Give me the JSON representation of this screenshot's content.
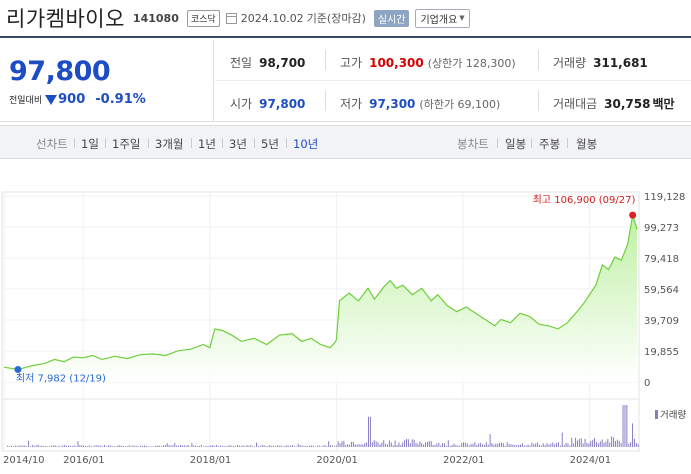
{
  "header": {
    "stock_name": "리가켐바이오",
    "stock_code": "141080",
    "market": "코스닥",
    "date": "2024.10.02",
    "basis": "기준(장마감)",
    "realtime": "실시간",
    "company_overview": "기업개요"
  },
  "price": {
    "current": "97,800",
    "change_label": "전일대비",
    "change": "900",
    "change_pct": "-0.91%",
    "direction": "down"
  },
  "stats": {
    "prev_close": {
      "label": "전일",
      "value": "98,700"
    },
    "high": {
      "label": "고가",
      "value": "100,300",
      "sub": "(상한가 128,300)"
    },
    "volume": {
      "label": "거래량",
      "value": "311,681"
    },
    "open": {
      "label": "시가",
      "value": "97,800"
    },
    "low": {
      "label": "저가",
      "value": "97,300",
      "sub": "(하한가 69,100)"
    },
    "trade_value": {
      "label": "거래대금",
      "value": "30,758",
      "unit": "백만"
    }
  },
  "tabs": {
    "line_label": "선차트",
    "line_items": [
      "1일",
      "1주일",
      "3개월",
      "1년",
      "3년",
      "5년",
      "10년"
    ],
    "active": "10년",
    "candle_label": "봉차트",
    "candle_items": [
      "일봉",
      "주봉",
      "월봉"
    ]
  },
  "colors": {
    "price_down": "#1d4dc4",
    "price_up": "#d60000",
    "line": "#6fcf3a",
    "volume": "#8a7cc4",
    "max_marker": "#e02020",
    "min_marker": "#2a6ad4"
  },
  "chart_data": {
    "type": "area",
    "x_ticks": [
      "2014/10",
      "2016/01",
      "2018/01",
      "2020/01",
      "2022/01",
      "2024/01"
    ],
    "y_ticks": [
      "119,128",
      "99,273",
      "79,418",
      "59,564",
      "39,709",
      "19,855",
      "0"
    ],
    "ylim": [
      0,
      119128
    ],
    "max_label": "최고 106,900 (09/27)",
    "min_label": "최저 7,982 (12/19)",
    "volume_legend": "거래량",
    "points": [
      [
        2014.75,
        9500
      ],
      [
        2014.97,
        7982
      ],
      [
        2015.2,
        10500
      ],
      [
        2015.4,
        12000
      ],
      [
        2015.55,
        14500
      ],
      [
        2015.7,
        13000
      ],
      [
        2015.85,
        16000
      ],
      [
        2016.0,
        15500
      ],
      [
        2016.15,
        17000
      ],
      [
        2016.3,
        14500
      ],
      [
        2016.5,
        16500
      ],
      [
        2016.7,
        15000
      ],
      [
        2016.9,
        17500
      ],
      [
        2017.1,
        18000
      ],
      [
        2017.3,
        17000
      ],
      [
        2017.5,
        20000
      ],
      [
        2017.7,
        21000
      ],
      [
        2017.9,
        24000
      ],
      [
        2018.0,
        22000
      ],
      [
        2018.08,
        34000
      ],
      [
        2018.2,
        33000
      ],
      [
        2018.35,
        30000
      ],
      [
        2018.5,
        26000
      ],
      [
        2018.7,
        28000
      ],
      [
        2018.9,
        24000
      ],
      [
        2019.1,
        30000
      ],
      [
        2019.3,
        31000
      ],
      [
        2019.45,
        26000
      ],
      [
        2019.6,
        28000
      ],
      [
        2019.75,
        24000
      ],
      [
        2019.9,
        22000
      ],
      [
        2019.97,
        25000
      ],
      [
        2020.0,
        27000
      ],
      [
        2020.05,
        52000
      ],
      [
        2020.2,
        57000
      ],
      [
        2020.35,
        52000
      ],
      [
        2020.5,
        60000
      ],
      [
        2020.6,
        53000
      ],
      [
        2020.75,
        61000
      ],
      [
        2020.85,
        65000
      ],
      [
        2020.95,
        60000
      ],
      [
        2021.05,
        62000
      ],
      [
        2021.2,
        56000
      ],
      [
        2021.35,
        60000
      ],
      [
        2021.5,
        52000
      ],
      [
        2021.6,
        56000
      ],
      [
        2021.75,
        49000
      ],
      [
        2021.9,
        45000
      ],
      [
        2022.05,
        48000
      ],
      [
        2022.2,
        44000
      ],
      [
        2022.35,
        40000
      ],
      [
        2022.5,
        36000
      ],
      [
        2022.6,
        40000
      ],
      [
        2022.75,
        38000
      ],
      [
        2022.9,
        44000
      ],
      [
        2023.05,
        42000
      ],
      [
        2023.2,
        37000
      ],
      [
        2023.35,
        36000
      ],
      [
        2023.5,
        34000
      ],
      [
        2023.65,
        38000
      ],
      [
        2023.8,
        45000
      ],
      [
        2023.9,
        50000
      ],
      [
        2024.0,
        56000
      ],
      [
        2024.1,
        62000
      ],
      [
        2024.2,
        75000
      ],
      [
        2024.3,
        72000
      ],
      [
        2024.4,
        80000
      ],
      [
        2024.5,
        78000
      ],
      [
        2024.6,
        88000
      ],
      [
        2024.68,
        106900
      ],
      [
        2024.75,
        97800
      ]
    ]
  }
}
